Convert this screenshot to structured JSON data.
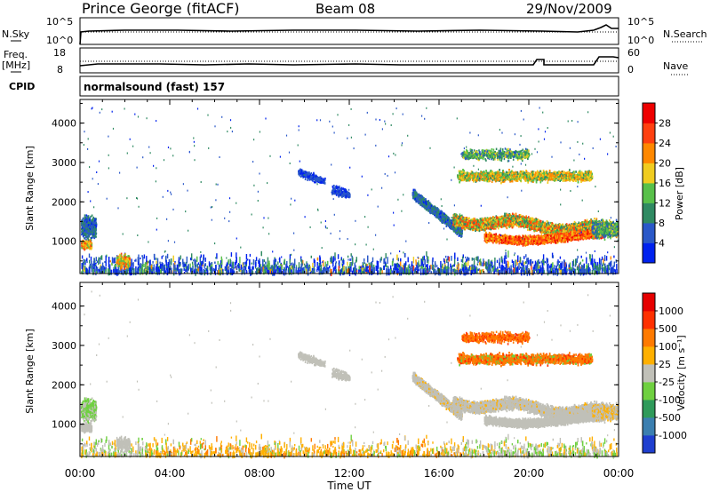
{
  "header": {
    "station": "Prince George (fitACF)",
    "beam": "Beam 08",
    "date": "29/Nov/2009"
  },
  "top_panel": {
    "left_label": "N.Sky",
    "left_ticks": [
      "10^5",
      "10^0"
    ],
    "right_label": "N.Search",
    "right_ticks": [
      "10^5",
      "10^0"
    ]
  },
  "freq_panel": {
    "left_label_1": "Freq.",
    "left_label_2": "[MHz]",
    "left_ticks": [
      "18",
      "8"
    ],
    "right_label": "Nave",
    "right_ticks": [
      "60",
      "0"
    ]
  },
  "cpid": {
    "label": "CPID",
    "value": "normalsound (fast) 157"
  },
  "chart_data": [
    {
      "type": "heatmap",
      "parameter": "Power",
      "ylabel": "Slant Range [km]",
      "yticks": [
        "1000",
        "2000",
        "3000",
        "4000"
      ],
      "ylim": [
        180,
        4600
      ],
      "colorbar_label": "Power [dB]",
      "colorbar_ticks": [
        "4",
        "8",
        "12",
        "16",
        "20",
        "24",
        "28"
      ],
      "colorbar_colors": [
        "#0022ee",
        "#2a58c8",
        "#2f8a62",
        "#58c04a",
        "#f0cc20",
        "#ff8800",
        "#ff4010",
        "#ee0000"
      ]
    },
    {
      "type": "heatmap",
      "parameter": "Velocity",
      "ylabel": "Slant Range [km]",
      "yticks": [
        "1000",
        "2000",
        "3000",
        "4000"
      ],
      "ylim": [
        180,
        4600
      ],
      "colorbar_label": "Velocity [m s⁻¹]",
      "colorbar_ticks": [
        "1000",
        "500",
        "100",
        "25",
        "-25",
        "-100",
        "-500",
        "-1000"
      ],
      "colorbar_colors": [
        "#1f3fcf",
        "#3b7fb0",
        "#2f9a5a",
        "#6fd040",
        "#c0c0b8",
        "#ffb000",
        "#ff7a00",
        "#ff3000",
        "#e60000"
      ]
    }
  ],
  "x_axis": {
    "ticks": [
      "00:00",
      "04:00",
      "08:00",
      "12:00",
      "16:00",
      "20:00",
      "00:00"
    ],
    "label": "Time UT"
  }
}
